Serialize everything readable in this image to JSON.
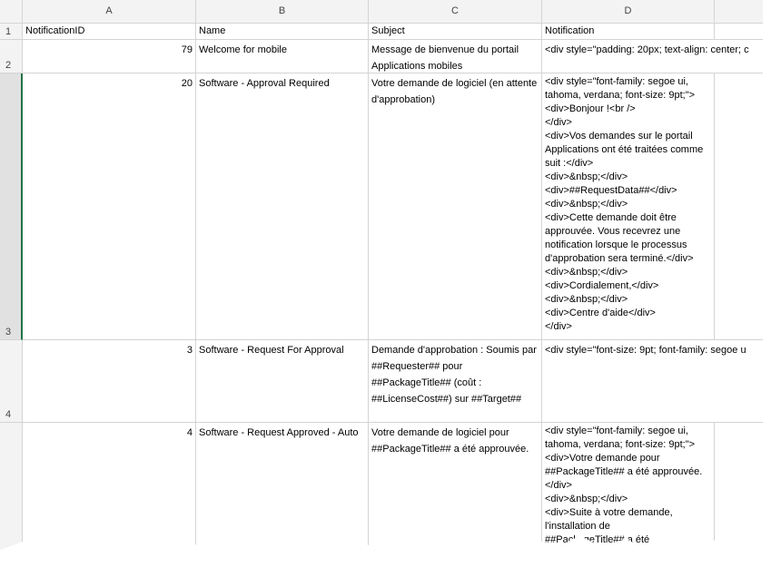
{
  "columns": [
    "A",
    "B",
    "C",
    "D"
  ],
  "rows": [
    {
      "num": "1",
      "id": "NotificationID",
      "name": "Name",
      "subject": "Subject",
      "notification": "Notification"
    },
    {
      "num": "2",
      "id": "79",
      "name": "Welcome for mobile",
      "subject": "Message de bienvenue du portail Applications mobiles",
      "notification": "<div style=\"padding: 20px; text-align: center; c"
    },
    {
      "num": "3",
      "id": "20",
      "name": "Software - Approval Required",
      "subject": "Votre demande de logiciel (en attente d'approbation)",
      "notification": "<div style=\"font-family: segoe ui, tahoma, verdana; font-size: 9pt;\">\n<div>Bonjour !<br />\n</div>\n<div>Vos demandes sur le portail Applications ont été traitées comme suit :</div>\n<div>&nbsp;</div>\n<div>##RequestData##</div>\n<div>&nbsp;</div>\n<div>Cette demande doit être approuvée. Vous recevrez une notification lorsque le processus d'approbation sera terminé.</div>\n<div>&nbsp;</div>\n<div>Cordialement,</div>\n<div>&nbsp;</div>\n<div>Centre d'aide</div>\n</div>"
    },
    {
      "num": "4",
      "id": "3",
      "name": "Software - Request For Approval",
      "subject": "Demande d'approbation : Soumis par ##Requester## pour ##PackageTitle## (coût : ##LicenseCost##) sur ##Target##",
      "notification": "<div style=\"font-size: 9pt; font-family: segoe u"
    },
    {
      "num": "",
      "id": "4",
      "name": "Software - Request Approved - Auto",
      "subject": "Votre demande de logiciel pour ##PackageTitle## a été approuvée.",
      "notification": "<div style=\"font-family: segoe ui, tahoma, verdana; font-size: 9pt;\">\n<div>Votre demande pour ##PackageTitle## a été approuvée. </div>\n<div>&nbsp;</div>\n<div>Suite à votre demande, l'installation de\n##PackageTitle## a été"
    }
  ]
}
